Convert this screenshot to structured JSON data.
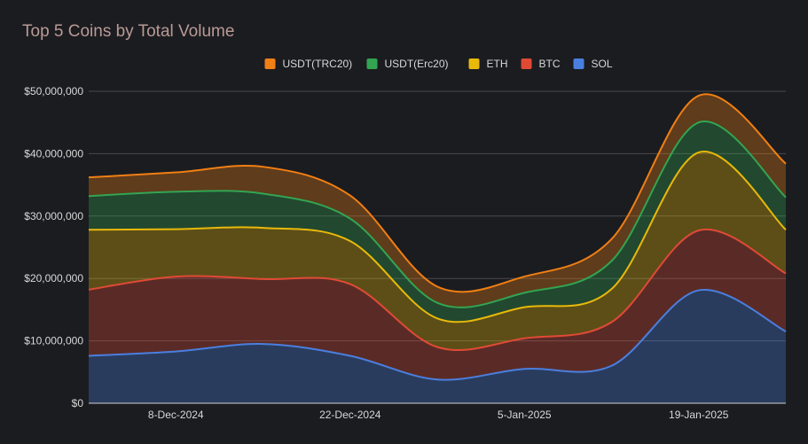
{
  "chart_data": {
    "type": "area",
    "stacked": true,
    "title": "Top 5 Coins by Total Volume",
    "xlabel": "",
    "ylabel": "",
    "ylim": [
      0,
      50000000
    ],
    "y_ticks": [
      "$0",
      "$10,000,000",
      "$20,000,000",
      "$30,000,000",
      "$40,000,000",
      "$50,000,000"
    ],
    "x_tick_labels": [
      "8-Dec-2024",
      "22-Dec-2024",
      "5-Jan-2025",
      "19-Jan-2025"
    ],
    "x": [
      "1-Dec-2024",
      "8-Dec-2024",
      "15-Dec-2024",
      "22-Dec-2024",
      "29-Dec-2024",
      "5-Jan-2025",
      "12-Jan-2025",
      "19-Jan-2025",
      "26-Jan-2025"
    ],
    "legend_position": "top-center",
    "series": [
      {
        "name": "SOL",
        "color": "#4a7fe0",
        "values": [
          7600000,
          8300000,
          9500000,
          7600000,
          3800000,
          5500000,
          6000000,
          18100000,
          11500000
        ]
      },
      {
        "name": "BTC",
        "color": "#e04a35",
        "values": [
          10600000,
          12000000,
          10400000,
          11500000,
          5200000,
          4900000,
          7000000,
          9600000,
          9300000
        ]
      },
      {
        "name": "ETH",
        "color": "#e8b90a",
        "values": [
          9600000,
          7600000,
          8200000,
          6900000,
          4600000,
          5000000,
          5300000,
          12500000,
          7000000
        ]
      },
      {
        "name": "USDT(Erc20)",
        "color": "#33a452",
        "values": [
          5400000,
          6000000,
          5500000,
          3600000,
          2500000,
          2300000,
          4500000,
          4800000,
          5200000
        ]
      },
      {
        "name": "USDT(TRC20)",
        "color": "#f07f14",
        "values": [
          3000000,
          3100000,
          4300000,
          3700000,
          2600000,
          2600000,
          3500000,
          4300000,
          5400000
        ]
      }
    ],
    "legend_order": [
      "USDT(TRC20)",
      "USDT(Erc20)",
      "ETH",
      "BTC",
      "SOL"
    ]
  },
  "colors": {
    "background": "#1b1c20",
    "gridline": "#4a4a4e",
    "baseline": "#d0d0d0",
    "title": "#b99a96",
    "text": "#d8d8d8"
  }
}
